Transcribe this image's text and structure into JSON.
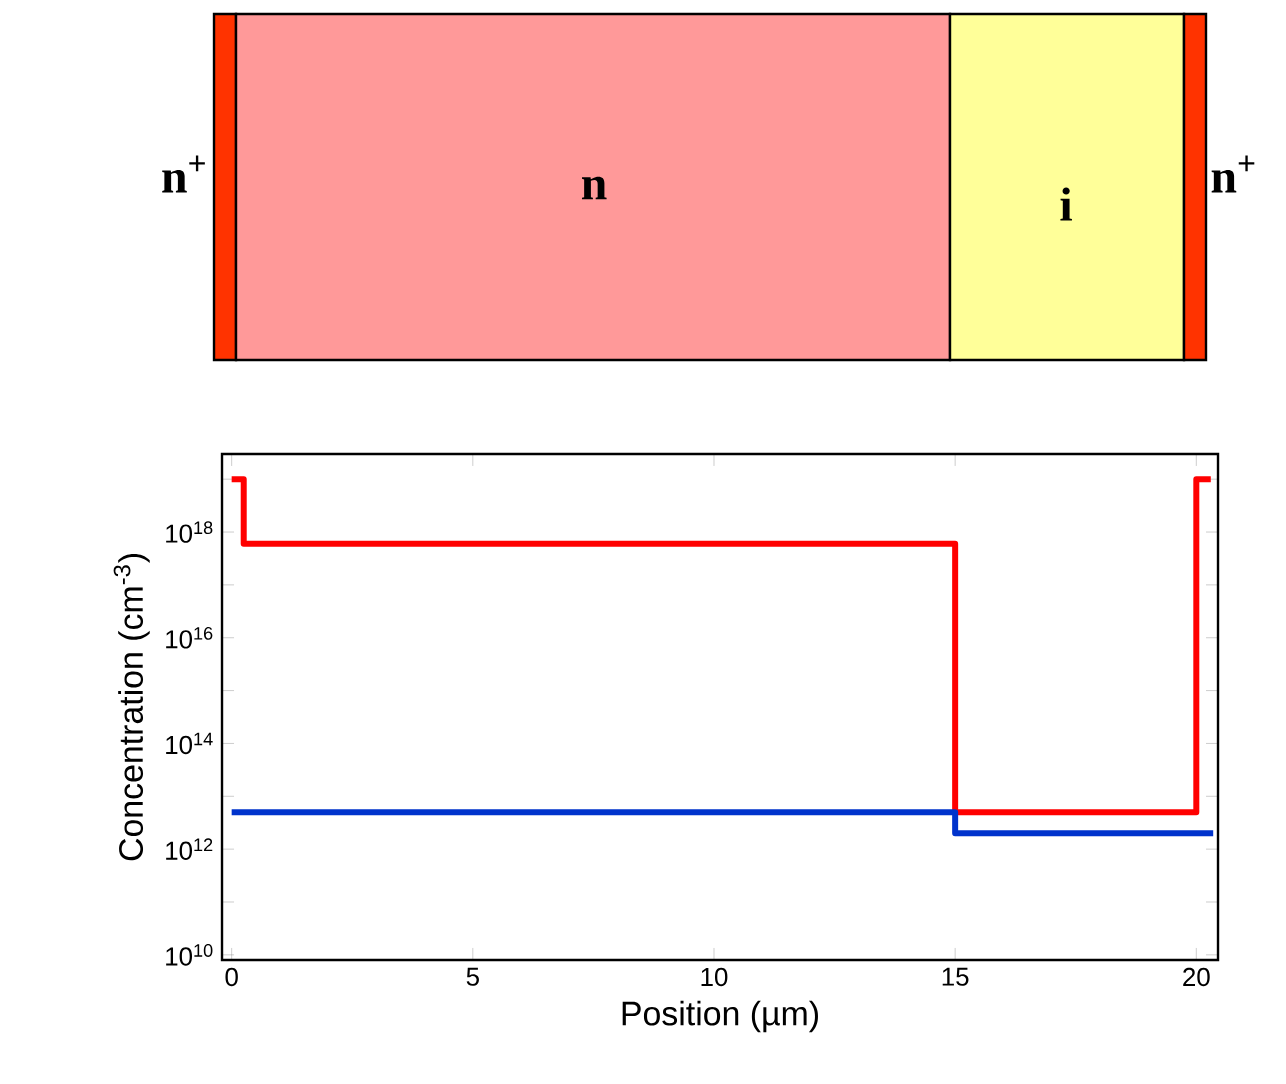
{
  "chart_data": [
    {
      "type": "other",
      "annotations": [
        "n$^{+}$",
        "n",
        "i",
        "n$^{+}$"
      ]
    },
    {
      "type": "step",
      "xlabel": "Position (µm)",
      "ylabel": "Concentration (cm$^{-3}$)",
      "log": "y",
      "xlim": [
        -0.2,
        20.45
      ],
      "xticks": [
        0,
        5,
        10,
        15,
        20
      ],
      "ylim": [
        8000000000.0,
        3e+19
      ],
      "yticks": [
        {
          "value": 10000000000.0,
          "label": "10$^{10}$"
        },
        {
          "value": 100000000000.0,
          "label": null
        },
        {
          "value": 1000000000000.0,
          "label": "10$^{12}$"
        },
        {
          "value": 10000000000000.0,
          "label": null
        },
        {
          "value": 100000000000000.0,
          "label": "10$^{14}$"
        },
        {
          "value": 1000000000000000.0,
          "label": null
        },
        {
          "value": 1e+16,
          "label": "10$^{16}$"
        },
        {
          "value": 1e+17,
          "label": null
        },
        {
          "value": 1e+18,
          "label": "10$^{18}$"
        },
        {
          "value": 1e+19,
          "label": null
        }
      ],
      "grid": false,
      "marker": "none",
      "line_style": "solid",
      "series": [
        {
          "color": "#ff0000",
          "x": [
            0,
            0.25,
            15,
            20,
            20.3
          ],
          "values": [
            1e+19,
            6e+17,
            5000000000000.0,
            1e+19,
            1e+19
          ]
        },
        {
          "color": "#0033cc",
          "x": [
            0,
            15,
            20.35
          ],
          "values": [
            5000000000000.0,
            2000000000000.0,
            2000000000000.0
          ]
        }
      ]
    }
  ]
}
